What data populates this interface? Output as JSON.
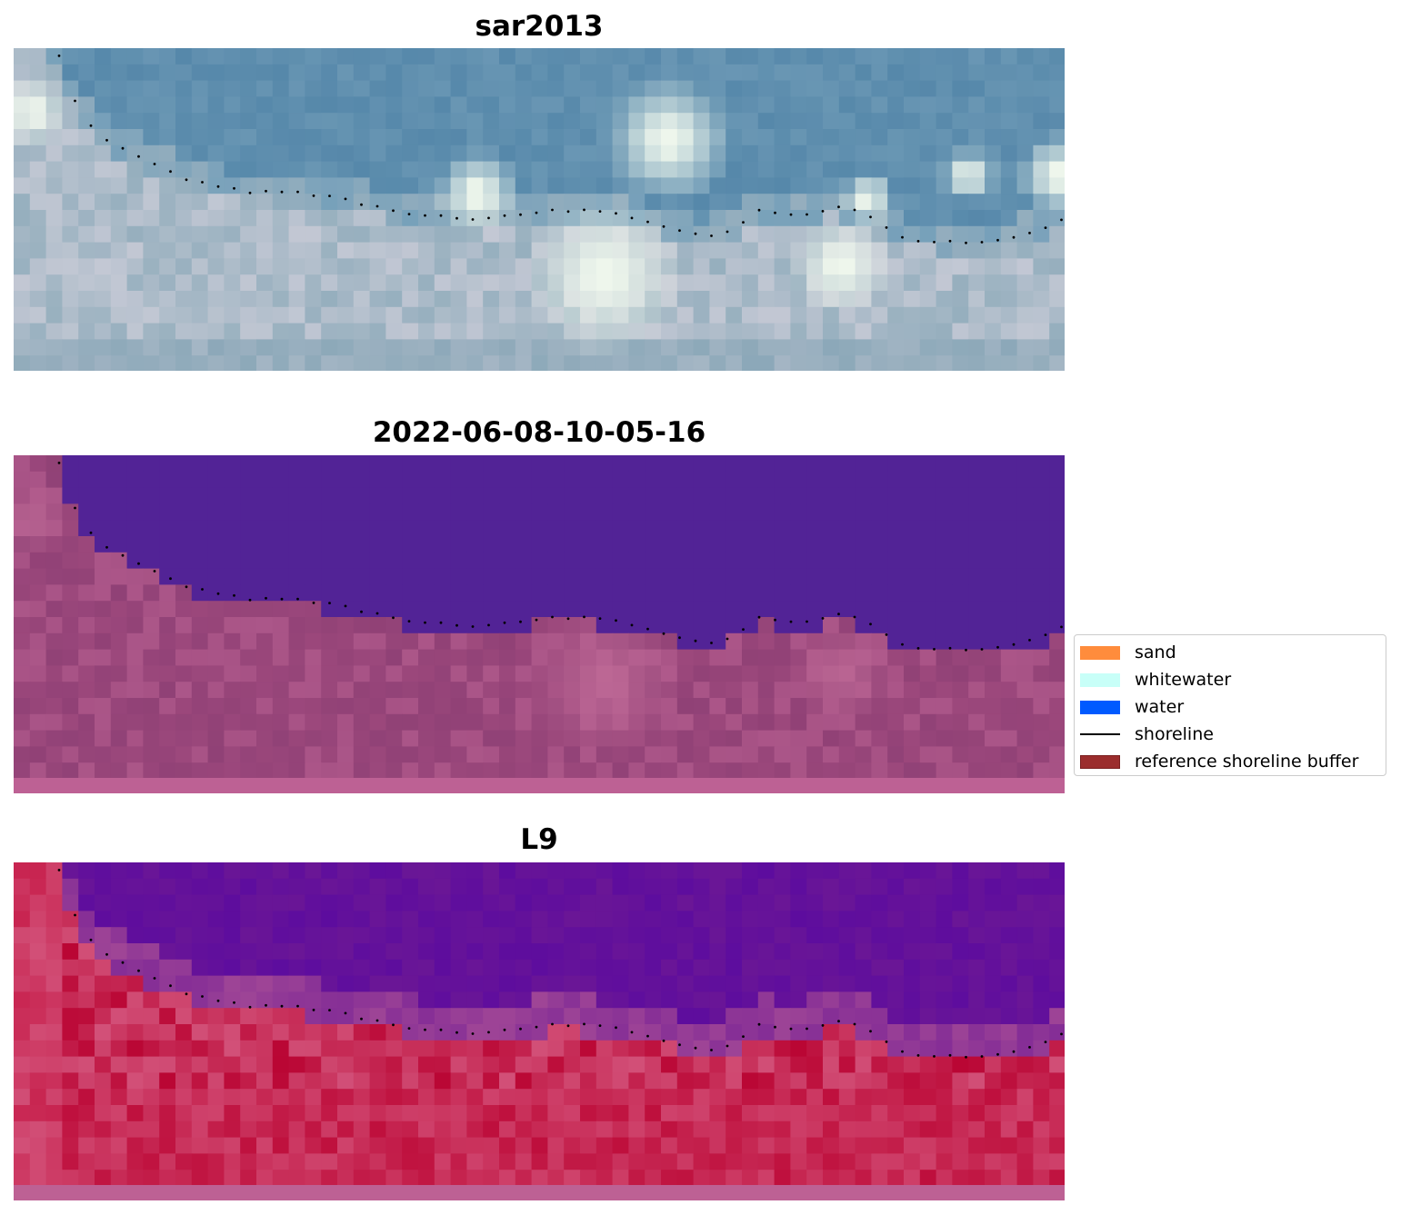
{
  "panels": [
    {
      "title": "sar2013"
    },
    {
      "title": "2022-06-08-10-05-16"
    },
    {
      "title": "L9"
    }
  ],
  "legend": {
    "items": [
      {
        "label": "sand",
        "color": "#ff8c3c",
        "kind": "patch"
      },
      {
        "label": "whitewater",
        "color": "#c8fff8",
        "kind": "patch"
      },
      {
        "label": "water",
        "color": "#005aff",
        "kind": "patch"
      },
      {
        "label": "shoreline",
        "color": "#000000",
        "kind": "line"
      },
      {
        "label": "reference shoreline buffer",
        "color": "#9b2d2d",
        "kind": "patch"
      }
    ]
  }
}
